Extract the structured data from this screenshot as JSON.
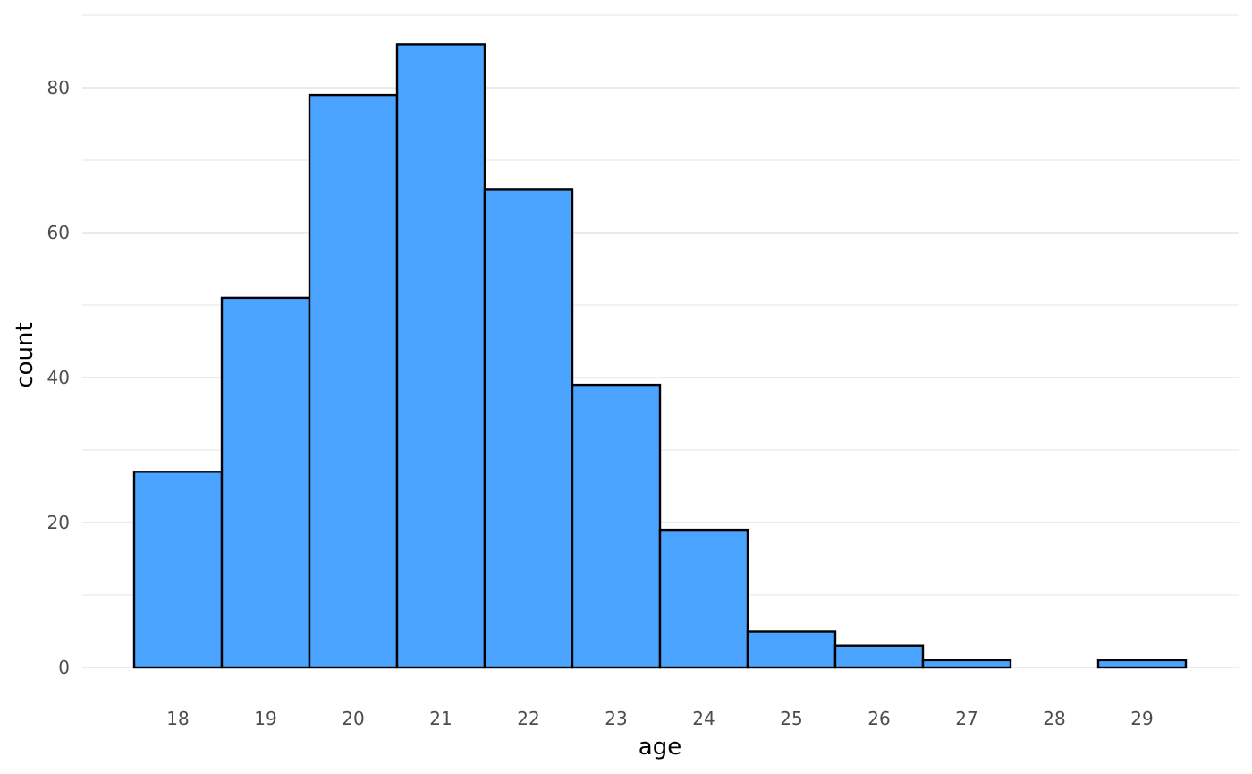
{
  "chart_data": {
    "type": "bar",
    "xlabel": "age",
    "ylabel": "count",
    "categories": [
      "18",
      "19",
      "20",
      "21",
      "22",
      "23",
      "24",
      "25",
      "26",
      "27",
      "28",
      "29"
    ],
    "values": [
      27,
      51,
      79,
      86,
      66,
      39,
      19,
      5,
      3,
      1,
      0,
      1
    ],
    "ylim": [
      0,
      90
    ],
    "y_ticks": [
      0,
      20,
      40,
      60,
      80
    ],
    "grid": true,
    "bar_fill": "#4aa3ff",
    "bar_stroke": "#000000",
    "grid_color": "#ebebeb"
  }
}
